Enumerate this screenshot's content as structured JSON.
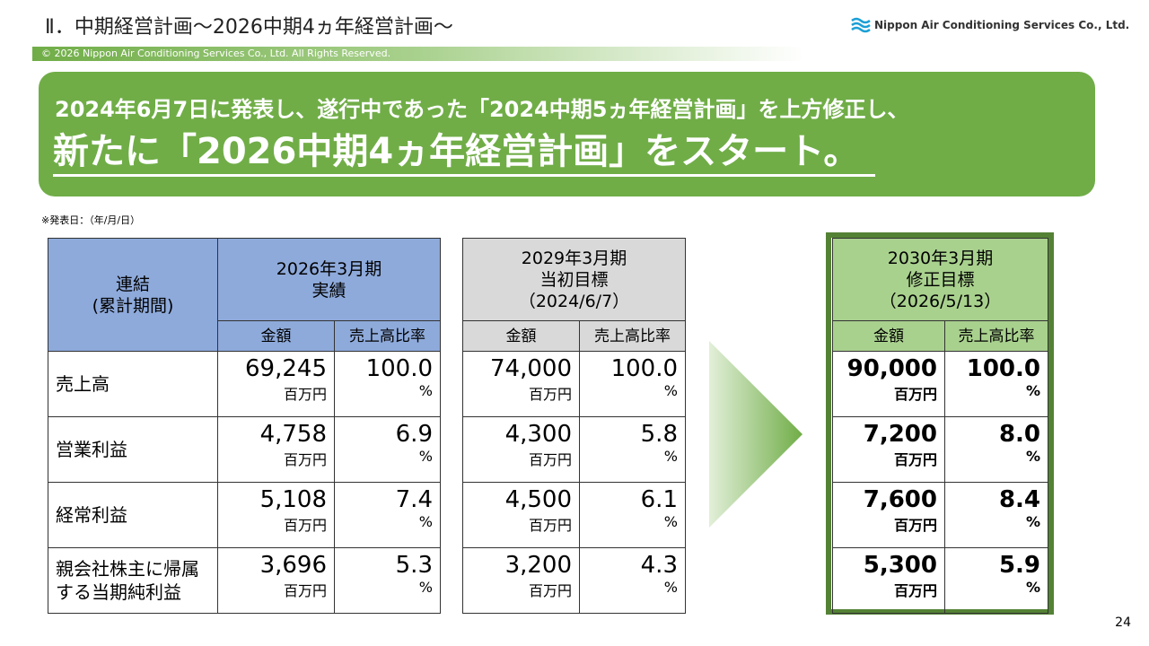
{
  "header": {
    "title": "Ⅱ．中期経営計画～2026中期4ヵ年経営計画～",
    "logo": "Nippon Air Conditioning Services Co., Ltd.",
    "copyright": "© 2026 Nippon Air Conditioning Services Co., Ltd. All Rights Reserved."
  },
  "banner": {
    "line1": "2024年6月7日に発表し、遂行中であった「2024中期5ヵ年経営計画」を上方修正し、",
    "line2": "新たに「2026中期4ヵ年経営計画」をスタート。"
  },
  "note": "※発表日：（年/月/日）",
  "table": {
    "corner": [
      "連結",
      "(累計期間)"
    ],
    "row_labels": [
      "売上高",
      "営業利益",
      "経常利益",
      "親会社株主に帰属する当期純利益"
    ],
    "groups": [
      {
        "heading": [
          "2026年3月期",
          "実績"
        ],
        "columns": [
          "金額",
          "売上高比率"
        ],
        "amount_unit": "百万円",
        "ratio_unit": "%",
        "rows": [
          [
            "69,245",
            "100.0"
          ],
          [
            "4,758",
            "6.9"
          ],
          [
            "5,108",
            "7.4"
          ],
          [
            "3,696",
            "5.3"
          ]
        ]
      },
      {
        "heading": [
          "2029年3月期",
          "当初目標",
          "（2024/6/7）"
        ],
        "columns": [
          "金額",
          "売上高比率"
        ],
        "amount_unit": "百万円",
        "ratio_unit": "%",
        "rows": [
          [
            "74,000",
            "100.0"
          ],
          [
            "4,300",
            "5.8"
          ],
          [
            "4,500",
            "6.1"
          ],
          [
            "3,200",
            "4.3"
          ]
        ]
      },
      {
        "heading": [
          "2030年3月期",
          "修正目標",
          "（2026/5/13）"
        ],
        "columns": [
          "金額",
          "売上高比率"
        ],
        "amount_unit": "百万円",
        "ratio_unit": "%",
        "rows": [
          [
            "90,000",
            "100.0"
          ],
          [
            "7,200",
            "8.0"
          ],
          [
            "7,600",
            "8.4"
          ],
          [
            "5,300",
            "5.9"
          ]
        ]
      }
    ]
  },
  "page_number": "24"
}
